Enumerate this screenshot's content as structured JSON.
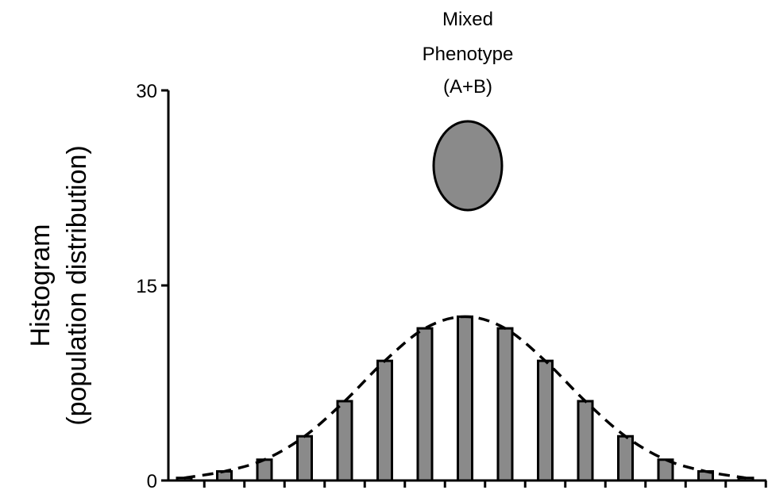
{
  "chart_data": {
    "type": "bar",
    "xlabel": "",
    "ylabel_line1": "Histogram",
    "ylabel_line2": "(population distribution)",
    "ylim": [
      0,
      30
    ],
    "yticks": [
      "0",
      "15",
      "30"
    ],
    "values": [
      0.2,
      0.7,
      1.6,
      3.4,
      6.1,
      9.2,
      11.7,
      12.6,
      11.7,
      9.2,
      6.1,
      3.4,
      1.6,
      0.7,
      0.2
    ],
    "fit_curve": "dashed",
    "annotation": {
      "line1": "Mixed",
      "line2": "Phenotype",
      "line3": "(A+B)",
      "marker": "gray-ellipse"
    },
    "colors": {
      "bar": "#8a8a8a",
      "stroke": "#000000",
      "marker": "#8a8a8a"
    }
  }
}
